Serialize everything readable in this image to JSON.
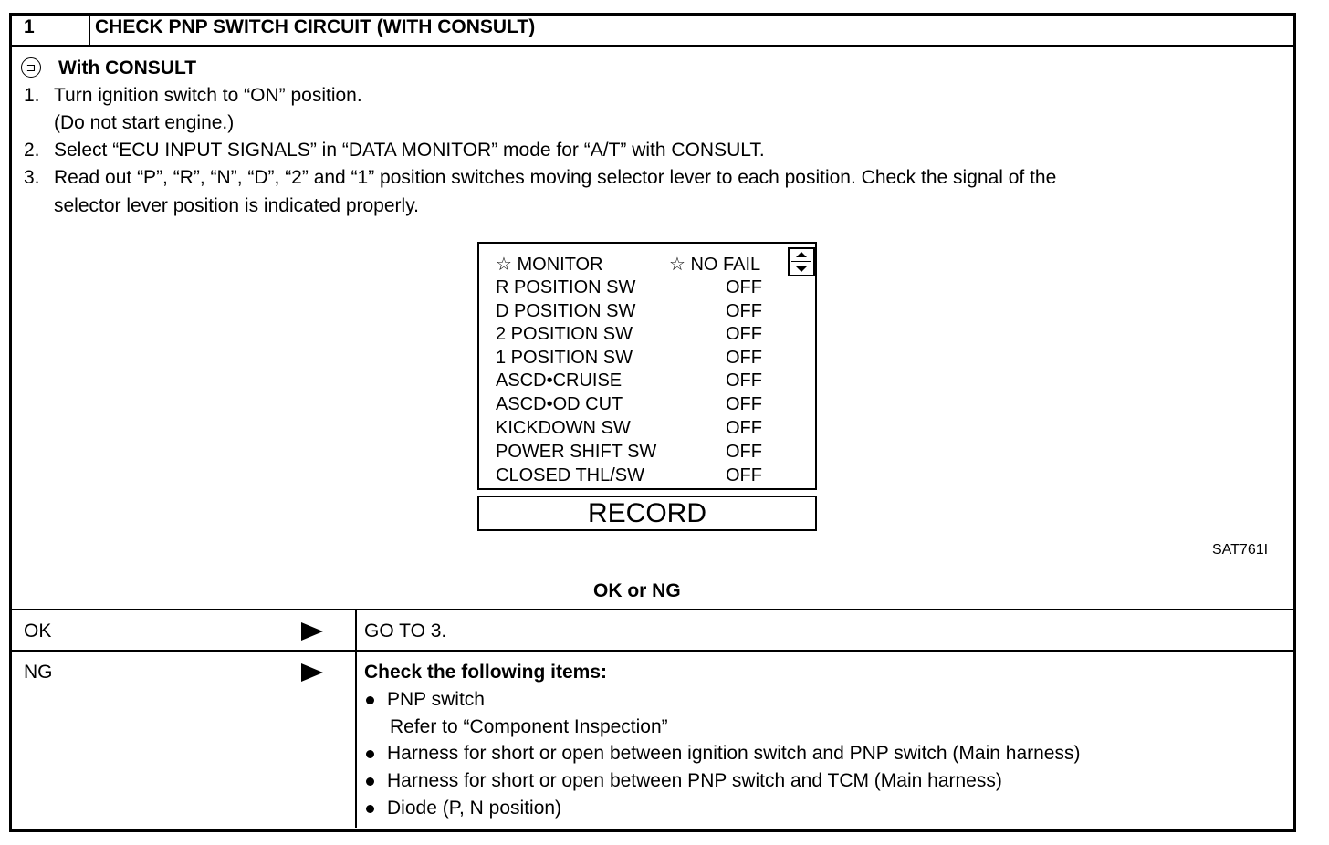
{
  "header": {
    "step": "1",
    "title": "CHECK PNP SWITCH CIRCUIT (WITH CONSULT)"
  },
  "body": {
    "consult_icon": "consult-icon",
    "consult_label": "With CONSULT",
    "steps": [
      {
        "num": "1.",
        "text": "Turn ignition switch to “ON” position."
      },
      {
        "num": "",
        "text": "(Do not start engine.)"
      },
      {
        "num": "2.",
        "text": "Select “ECU INPUT SIGNALS” in “DATA MONITOR” mode for “A/T” with CONSULT."
      },
      {
        "num": "3.",
        "text": "Read out “P”, “R”, “N”, “D”, “2” and “1” position switches moving selector lever to each position. Check the signal of the"
      },
      {
        "num": "",
        "text": "selector lever position is indicated properly."
      }
    ]
  },
  "monitor": {
    "header_left": "☆ MONITOR",
    "header_right": "☆ NO FAIL",
    "rows": [
      {
        "label": "R POSITION SW",
        "value": "OFF"
      },
      {
        "label": "D POSITION SW",
        "value": "OFF"
      },
      {
        "label": "2 POSITION SW",
        "value": "OFF"
      },
      {
        "label": "1 POSITION SW",
        "value": "OFF"
      },
      {
        "label": "ASCD•CRUISE",
        "value": "OFF"
      },
      {
        "label": "ASCD•OD CUT",
        "value": "OFF"
      },
      {
        "label": "KICKDOWN SW",
        "value": "OFF"
      },
      {
        "label": "POWER SHIFT SW",
        "value": "OFF"
      },
      {
        "label": "CLOSED THL/SW",
        "value": "OFF"
      }
    ],
    "record_label": "RECORD"
  },
  "figure_id": "SAT761I",
  "result_question": "OK or NG",
  "results": [
    {
      "label": "OK",
      "action": "GO TO 3."
    },
    {
      "label": "NG",
      "action_title": "Check the following items:",
      "items": [
        {
          "text": "PNP switch",
          "sub": "Refer to “Component Inspection”"
        },
        {
          "text": "Harness for short or open between ignition switch and PNP switch (Main harness)"
        },
        {
          "text": "Harness for short or open between PNP switch and TCM (Main harness)"
        },
        {
          "text": "Diode (P, N position)"
        }
      ]
    }
  ]
}
